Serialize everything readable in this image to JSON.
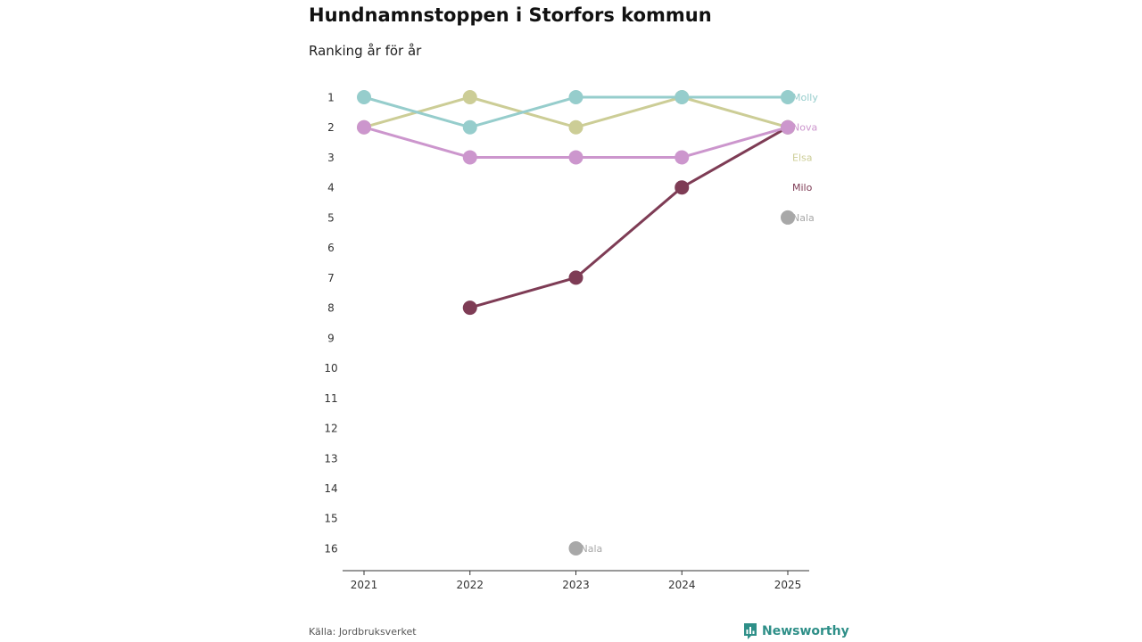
{
  "header": {
    "title": "Hundnamnstoppen i Storfors kommun",
    "subtitle": "Ranking år för år"
  },
  "footer": {
    "source": "Källa: Jordbruksverket",
    "brand": "Newsworthy",
    "brand_icon": "bar-chart-logo-icon",
    "brand_color": "#2e8f88"
  },
  "chart_data": {
    "type": "line",
    "title": "Hundnamnstoppen i Storfors kommun",
    "subtitle": "Ranking år för år",
    "x": [
      "2021",
      "2022",
      "2023",
      "2024",
      "2025"
    ],
    "y_ticks": [
      "1",
      "2",
      "3",
      "4",
      "5",
      "6",
      "7",
      "8",
      "9",
      "10",
      "11",
      "12",
      "13",
      "14",
      "15",
      "16"
    ],
    "ylim": [
      1,
      16
    ],
    "y_inverted": true,
    "grid": false,
    "legend": "direct labels at line ends",
    "series": [
      {
        "name": "Molly",
        "color": "#96cdcc",
        "values": [
          1,
          2,
          1,
          1,
          1
        ]
      },
      {
        "name": "Nova",
        "color": "#cc96cd",
        "values": [
          2,
          3,
          3,
          3,
          2
        ]
      },
      {
        "name": "Elsa",
        "color": "#cccd96",
        "values": [
          2,
          1,
          2,
          1,
          2
        ]
      },
      {
        "name": "Milo",
        "color": "#7e3c55",
        "values": [
          null,
          8,
          7,
          4,
          2
        ]
      },
      {
        "name": "Nala",
        "color": "#a8a8a8",
        "values": [
          null,
          null,
          16,
          null,
          5
        ]
      }
    ],
    "point_labels": [
      {
        "series": "Nala",
        "x": "2023",
        "text": "Nala"
      }
    ]
  }
}
